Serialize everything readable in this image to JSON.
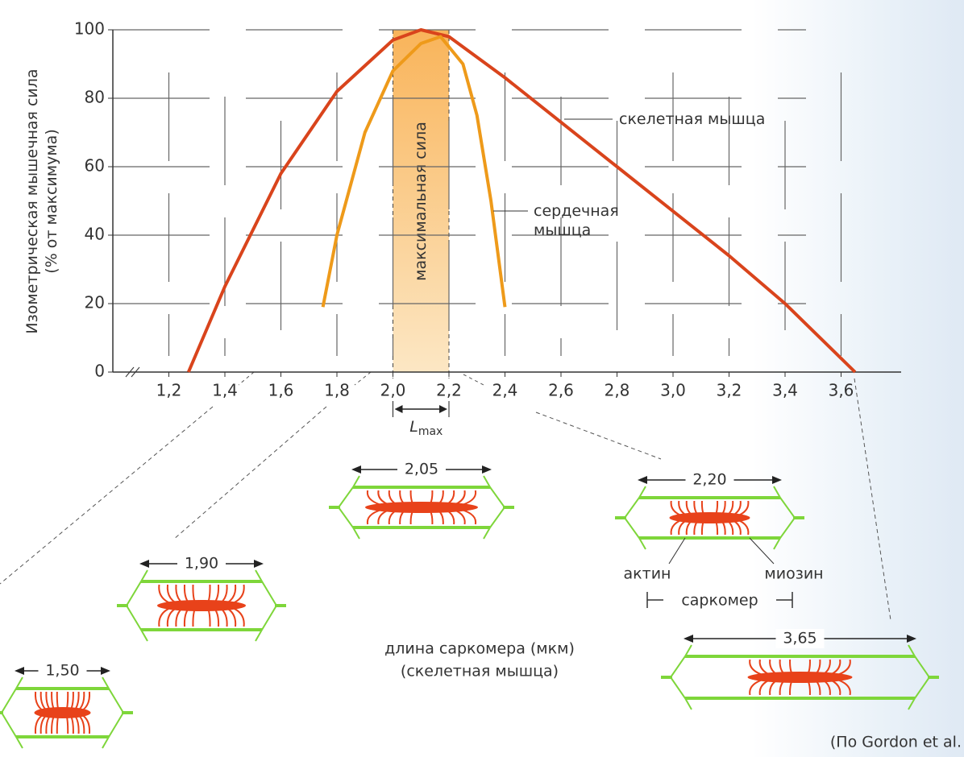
{
  "chart_data": {
    "type": "line",
    "y_label": [
      "Изометрическая мышечная сила",
      "(% от максимума)"
    ],
    "xlim": [
      1.0,
      3.8
    ],
    "ylim": [
      0,
      100
    ],
    "xticks": [
      {
        "value": 1.2,
        "label": "1,2"
      },
      {
        "value": 1.4,
        "label": "1,4"
      },
      {
        "value": 1.6,
        "label": "1,6"
      },
      {
        "value": 1.8,
        "label": "1,8"
      },
      {
        "value": 2.0,
        "label": "2,0"
      },
      {
        "value": 2.2,
        "label": "2,2"
      },
      {
        "value": 2.4,
        "label": "2,4"
      },
      {
        "value": 2.6,
        "label": "2,6"
      },
      {
        "value": 2.8,
        "label": "2,8"
      },
      {
        "value": 3.0,
        "label": "3,0"
      },
      {
        "value": 3.2,
        "label": "3,2"
      },
      {
        "value": 3.4,
        "label": "3,4"
      },
      {
        "value": 3.6,
        "label": "3,6"
      }
    ],
    "yticks": [
      0,
      20,
      40,
      60,
      80,
      100
    ],
    "grid": true,
    "series": [
      {
        "name": "скелетная мышца",
        "color": "#d9441c",
        "x": [
          1.27,
          1.4,
          1.6,
          1.8,
          2.0,
          2.1,
          2.2,
          2.4,
          2.8,
          3.2,
          3.4,
          3.65
        ],
        "values": [
          0,
          25,
          58,
          82,
          97,
          100,
          98,
          86,
          60,
          34,
          20,
          0
        ]
      },
      {
        "name": "сердечная мышца",
        "color": "#ee9a1a",
        "x": [
          1.75,
          1.8,
          1.9,
          2.0,
          2.1,
          2.17,
          2.25,
          2.3,
          2.35,
          2.4
        ],
        "values": [
          19,
          40,
          70,
          88,
          96,
          98,
          90,
          75,
          50,
          19
        ]
      }
    ],
    "band": {
      "from": 2.0,
      "to": 2.2,
      "label": "максимальная сила"
    },
    "lmax_label": "L",
    "lmax_subscript": "max"
  },
  "diagrams": [
    {
      "length": "1,50"
    },
    {
      "length": "1,90"
    },
    {
      "length": "2,05"
    },
    {
      "length": "2,20"
    },
    {
      "length": "3,65"
    }
  ],
  "labels": {
    "actin": "актин",
    "myosin": "миозин",
    "sarcomere": "саркомер"
  },
  "caption": [
    "длина саркомера (мкм)",
    "(скелетная мышца)"
  ],
  "source": "(По Gordon et al."
}
